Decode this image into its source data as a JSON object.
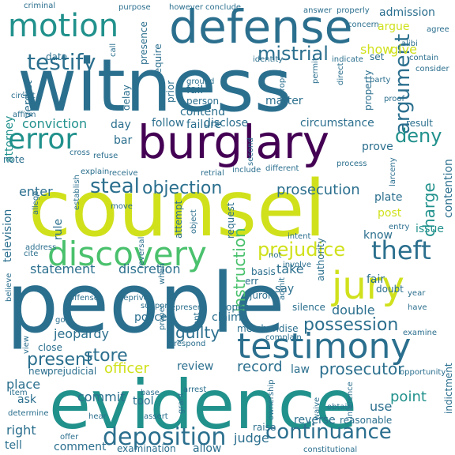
{
  "palette": {
    "dark_purple": "#440154",
    "indigo": "#46327e",
    "blue": "#365c8d",
    "slate_blue": "#2b6f8e",
    "teal_blue": "#277f8e",
    "teal": "#21918c",
    "green_teal": "#1fa187",
    "green": "#4ac16d",
    "light_green": "#a0da39",
    "yellow_green": "#d0e11c",
    "yellow": "#fde725"
  },
  "words": [
    {
      "text": "witness",
      "color": "#2b6f8e"
    },
    {
      "text": "counsel",
      "color": "#d0e11c"
    },
    {
      "text": "people",
      "color": "#2b6f8e"
    },
    {
      "text": "evidence",
      "color": "#21918c"
    },
    {
      "text": "defense",
      "color": "#2b6f8e"
    },
    {
      "text": "burglary",
      "color": "#440154"
    },
    {
      "text": "testimony",
      "color": "#2b6f8e"
    },
    {
      "text": "jury",
      "color": "#d0e11c"
    },
    {
      "text": "discovery",
      "color": "#4ac16d"
    },
    {
      "text": "motion",
      "color": "#21918c"
    },
    {
      "text": "error",
      "color": "#21918c"
    },
    {
      "text": "theft",
      "color": "#2b6f8e"
    },
    {
      "text": "deposition",
      "color": "#2b6f8e"
    },
    {
      "text": "continuance",
      "color": "#2b6f8e"
    },
    {
      "text": "prejudice",
      "color": "#d0e11c"
    },
    {
      "text": "testify",
      "color": "#2b6f8e"
    },
    {
      "text": "mistrial",
      "color": "#2b6f8e"
    },
    {
      "text": "argument",
      "color": "#2b6f8e"
    },
    {
      "text": "deny",
      "color": "#21918c"
    },
    {
      "text": "steal",
      "color": "#2b6f8e"
    },
    {
      "text": "possession",
      "color": "#2b6f8e"
    },
    {
      "text": "store",
      "color": "#2b6f8e"
    },
    {
      "text": "present",
      "color": "#2b6f8e"
    },
    {
      "text": "objection",
      "color": "#2b6f8e"
    },
    {
      "text": "prosecution",
      "color": "#2b6f8e"
    },
    {
      "text": "charge",
      "color": "#21918c"
    },
    {
      "text": "instruction",
      "color": "#4ac16d"
    },
    {
      "text": "prosecutor",
      "color": "#2b6f8e"
    },
    {
      "text": "officer",
      "color": "#d0e11c"
    },
    {
      "text": "guilty",
      "color": "#2b6f8e"
    },
    {
      "text": "record",
      "color": "#2b6f8e"
    },
    {
      "text": "statement",
      "color": "#2b6f8e"
    },
    {
      "text": "discretion",
      "color": "#2b6f8e"
    },
    {
      "text": "jeopardy",
      "color": "#2b6f8e"
    },
    {
      "text": "double",
      "color": "#2b6f8e"
    },
    {
      "text": "judge",
      "color": "#2b6f8e"
    },
    {
      "text": "conviction",
      "color": "#21918c"
    },
    {
      "text": "attorney",
      "color": "#21918c"
    },
    {
      "text": "verdict",
      "color": "#2b6f8e"
    },
    {
      "text": "enter",
      "color": "#2b6f8e"
    },
    {
      "text": "contend",
      "color": "#2b6f8e"
    },
    {
      "text": "failure",
      "color": "#2b6f8e"
    },
    {
      "text": "matter",
      "color": "#2b6f8e"
    },
    {
      "text": "circumstance",
      "color": "#2b6f8e"
    },
    {
      "text": "follow",
      "color": "#2b6f8e"
    },
    {
      "text": "disclose",
      "color": "#2b6f8e"
    },
    {
      "text": "admission",
      "color": "#2b6f8e"
    },
    {
      "text": "argue",
      "color": "#d0e11c"
    },
    {
      "text": "show",
      "color": "#d0e11c"
    },
    {
      "text": "give",
      "color": "#d0e11c"
    },
    {
      "text": "issue",
      "color": "#21918c"
    },
    {
      "text": "contention",
      "color": "#2b6f8e"
    },
    {
      "text": "plate",
      "color": "#2b6f8e"
    },
    {
      "text": "post",
      "color": "#d0e11c"
    },
    {
      "text": "know",
      "color": "#2b6f8e"
    },
    {
      "text": "fair",
      "color": "#2b6f8e"
    },
    {
      "text": "take",
      "color": "#2b6f8e"
    },
    {
      "text": "say",
      "color": "#2b6f8e"
    },
    {
      "text": "claim",
      "color": "#2b6f8e"
    },
    {
      "text": "police",
      "color": "#2b6f8e"
    },
    {
      "text": "review",
      "color": "#2b6f8e"
    },
    {
      "text": "law",
      "color": "#2b6f8e"
    },
    {
      "text": "point",
      "color": "#21918c"
    },
    {
      "text": "use",
      "color": "#2b6f8e"
    },
    {
      "text": "commit",
      "color": "#2b6f8e"
    },
    {
      "text": "tool",
      "color": "#2b6f8e"
    },
    {
      "text": "ask",
      "color": "#2b6f8e"
    },
    {
      "text": "place",
      "color": "#2b6f8e"
    },
    {
      "text": "right",
      "color": "#2b6f8e"
    },
    {
      "text": "tell",
      "color": "#2b6f8e"
    },
    {
      "text": "comment",
      "color": "#2b6f8e"
    },
    {
      "text": "examination",
      "color": "#2b6f8e"
    },
    {
      "text": "allow",
      "color": "#2b6f8e"
    },
    {
      "text": "reverse",
      "color": "#2b6f8e"
    },
    {
      "text": "reasonable",
      "color": "#2b6f8e"
    },
    {
      "text": "indictment",
      "color": "#2b6f8e"
    },
    {
      "text": "raise",
      "color": "#2b6f8e"
    },
    {
      "text": "new",
      "color": "#2b6f8e"
    },
    {
      "text": "prejudicial",
      "color": "#2b6f8e"
    },
    {
      "text": "television",
      "color": "#2b6f8e"
    },
    {
      "text": "rule",
      "color": "#2b6f8e"
    },
    {
      "text": "bar",
      "color": "#2b6f8e"
    },
    {
      "text": "day",
      "color": "#2b6f8e"
    },
    {
      "text": "note",
      "color": "#2b6f8e"
    },
    {
      "text": "date",
      "color": "#2b6f8e"
    },
    {
      "text": "set",
      "color": "#2b6f8e"
    },
    {
      "text": "fail",
      "color": "#2b6f8e"
    },
    {
      "text": "delay",
      "color": "#2b6f8e"
    },
    {
      "text": "prove",
      "color": "#2b6f8e"
    },
    {
      "text": "result",
      "color": "#2b6f8e"
    },
    {
      "text": "request",
      "color": "#2b6f8e"
    },
    {
      "text": "authority",
      "color": "#2b6f8e"
    },
    {
      "text": "attempt",
      "color": "#2b6f8e"
    },
    {
      "text": "juror",
      "color": "#2b6f8e"
    },
    {
      "text": "err",
      "color": "#2b6f8e"
    },
    {
      "text": "doubt",
      "color": "#2b6f8e"
    },
    {
      "text": "silence",
      "color": "#2b6f8e"
    },
    {
      "text": "merchandise",
      "color": "#2b6f8e"
    },
    {
      "text": "open",
      "color": "#2b6f8e"
    },
    {
      "text": "basis",
      "color": "#2b6f8e"
    },
    {
      "text": "property",
      "color": "#2b6f8e"
    },
    {
      "text": "presence",
      "color": "#2b6f8e"
    },
    {
      "text": "require",
      "color": "#2b6f8e"
    },
    {
      "text": "prior",
      "color": "#2b6f8e"
    },
    {
      "text": "person",
      "color": "#2b6f8e"
    },
    {
      "text": "ground",
      "color": "#2b6f8e"
    },
    {
      "text": "answer",
      "color": "#2b6f8e"
    },
    {
      "text": "properly",
      "color": "#2b6f8e"
    },
    {
      "text": "concern",
      "color": "#2b6f8e"
    },
    {
      "text": "agree",
      "color": "#2b6f8e"
    },
    {
      "text": "conclude",
      "color": "#2b6f8e"
    },
    {
      "text": "however",
      "color": "#2b6f8e"
    },
    {
      "text": "purpose",
      "color": "#2b6f8e"
    },
    {
      "text": "criminal",
      "color": "#2b6f8e"
    },
    {
      "text": "alibi",
      "color": "#2b6f8e"
    },
    {
      "text": "circuit",
      "color": "#2b6f8e"
    },
    {
      "text": "affirm",
      "color": "#2b6f8e"
    },
    {
      "text": "larceny",
      "color": "#2b6f8e"
    },
    {
      "text": "entry",
      "color": "#2b6f8e"
    },
    {
      "text": "include",
      "color": "#2b6f8e"
    },
    {
      "text": "second",
      "color": "#2b6f8e"
    },
    {
      "text": "reversal",
      "color": "#2b6f8e"
    },
    {
      "text": "establish",
      "color": "#2b6f8e"
    },
    {
      "text": "allege",
      "color": "#2b6f8e"
    },
    {
      "text": "cite",
      "color": "#2b6f8e"
    },
    {
      "text": "believe",
      "color": "#2b6f8e"
    },
    {
      "text": "support",
      "color": "#2b6f8e"
    },
    {
      "text": "go",
      "color": "#2b6f8e"
    },
    {
      "text": "close",
      "color": "#2b6f8e"
    },
    {
      "text": "view",
      "color": "#2b6f8e"
    },
    {
      "text": "proper",
      "color": "#2b6f8e"
    },
    {
      "text": "want",
      "color": "#2b6f8e"
    },
    {
      "text": "admit",
      "color": "#2b6f8e"
    },
    {
      "text": "year",
      "color": "#2b6f8e"
    },
    {
      "text": "have",
      "color": "#2b6f8e"
    },
    {
      "text": "obtain",
      "color": "#2b6f8e"
    },
    {
      "text": "ownership",
      "color": "#2b6f8e"
    },
    {
      "text": "inference",
      "color": "#2b6f8e"
    },
    {
      "text": "waive",
      "color": "#2b6f8e"
    },
    {
      "text": "base",
      "color": "#2b6f8e"
    },
    {
      "text": "assert",
      "color": "#2b6f8e"
    },
    {
      "text": "hear",
      "color": "#2b6f8e"
    },
    {
      "text": "item",
      "color": "#2b6f8e"
    },
    {
      "text": "offer",
      "color": "#2b6f8e"
    },
    {
      "text": "determine",
      "color": "#2b6f8e"
    },
    {
      "text": "move",
      "color": "#2b6f8e"
    },
    {
      "text": "object",
      "color": "#2b6f8e"
    },
    {
      "text": "refuse",
      "color": "#2b6f8e"
    },
    {
      "text": "cross",
      "color": "#2b6f8e"
    },
    {
      "text": "improper",
      "color": "#2b6f8e"
    },
    {
      "text": "call",
      "color": "#2b6f8e"
    },
    {
      "text": "proof",
      "color": "#2b6f8e"
    },
    {
      "text": "involve",
      "color": "#2b6f8e"
    },
    {
      "text": "explain",
      "color": "#2b6f8e"
    },
    {
      "text": "receive",
      "color": "#2b6f8e"
    },
    {
      "text": "intent",
      "color": "#2b6f8e"
    },
    {
      "text": "party",
      "color": "#2b6f8e"
    },
    {
      "text": "identity",
      "color": "#2b6f8e"
    },
    {
      "text": "indicate",
      "color": "#2b6f8e"
    },
    {
      "text": "contain",
      "color": "#2b6f8e"
    },
    {
      "text": "consider",
      "color": "#2b6f8e"
    },
    {
      "text": "permit",
      "color": "#2b6f8e"
    },
    {
      "text": "direct",
      "color": "#2b6f8e"
    },
    {
      "text": "offense",
      "color": "#2b6f8e"
    },
    {
      "text": "grant",
      "color": "#2b6f8e"
    },
    {
      "text": "arrest",
      "color": "#2b6f8e"
    },
    {
      "text": "complain",
      "color": "#2b6f8e"
    },
    {
      "text": "examine",
      "color": "#2b6f8e"
    },
    {
      "text": "opportunity",
      "color": "#2b6f8e"
    },
    {
      "text": "constitutional",
      "color": "#2b6f8e"
    },
    {
      "text": "process",
      "color": "#2b6f8e"
    },
    {
      "text": "represent",
      "color": "#2b6f8e"
    },
    {
      "text": "deprive",
      "color": "#2b6f8e"
    },
    {
      "text": "address",
      "color": "#2b6f8e"
    },
    {
      "text": "respond",
      "color": "#2b6f8e"
    },
    {
      "text": "retrial",
      "color": "#2b6f8e"
    },
    {
      "text": "different",
      "color": "#2b6f8e"
    },
    {
      "text": "when",
      "color": "#2b6f8e"
    },
    {
      "text": "not",
      "color": "#2b6f8e"
    }
  ]
}
